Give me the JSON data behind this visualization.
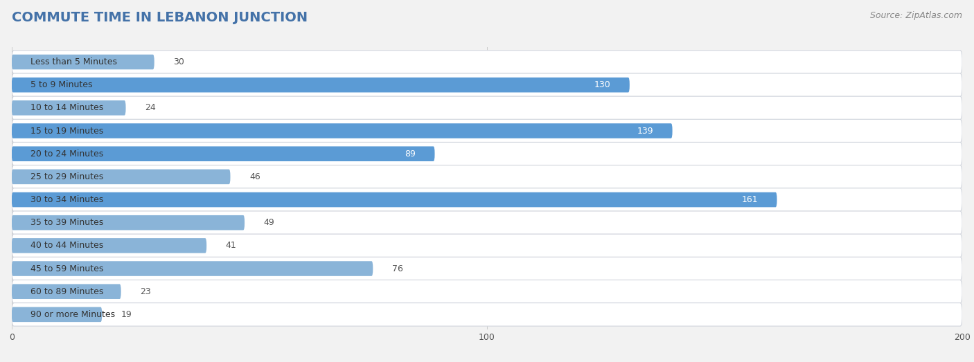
{
  "title": "COMMUTE TIME IN LEBANON JUNCTION",
  "source": "Source: ZipAtlas.com",
  "categories": [
    "Less than 5 Minutes",
    "5 to 9 Minutes",
    "10 to 14 Minutes",
    "15 to 19 Minutes",
    "20 to 24 Minutes",
    "25 to 29 Minutes",
    "30 to 34 Minutes",
    "35 to 39 Minutes",
    "40 to 44 Minutes",
    "45 to 59 Minutes",
    "60 to 89 Minutes",
    "90 or more Minutes"
  ],
  "values": [
    30,
    130,
    24,
    139,
    89,
    46,
    161,
    49,
    41,
    76,
    23,
    19
  ],
  "xlim": [
    0,
    200
  ],
  "xticks": [
    0,
    100,
    200
  ],
  "bar_color_light": "#8ab4d8",
  "bar_color_dark": "#5b9bd5",
  "threshold": 80,
  "label_color_inside": "#ffffff",
  "label_color_outside": "#555555",
  "background_color": "#f2f2f2",
  "row_bg_light": "#f7f8fa",
  "row_bg_white": "#ffffff",
  "title_color": "#4472a8",
  "source_color": "#888888",
  "title_fontsize": 14,
  "source_fontsize": 9,
  "bar_label_fontsize": 9,
  "cat_label_fontsize": 9,
  "tick_fontsize": 9,
  "grid_color": "#cccccc"
}
